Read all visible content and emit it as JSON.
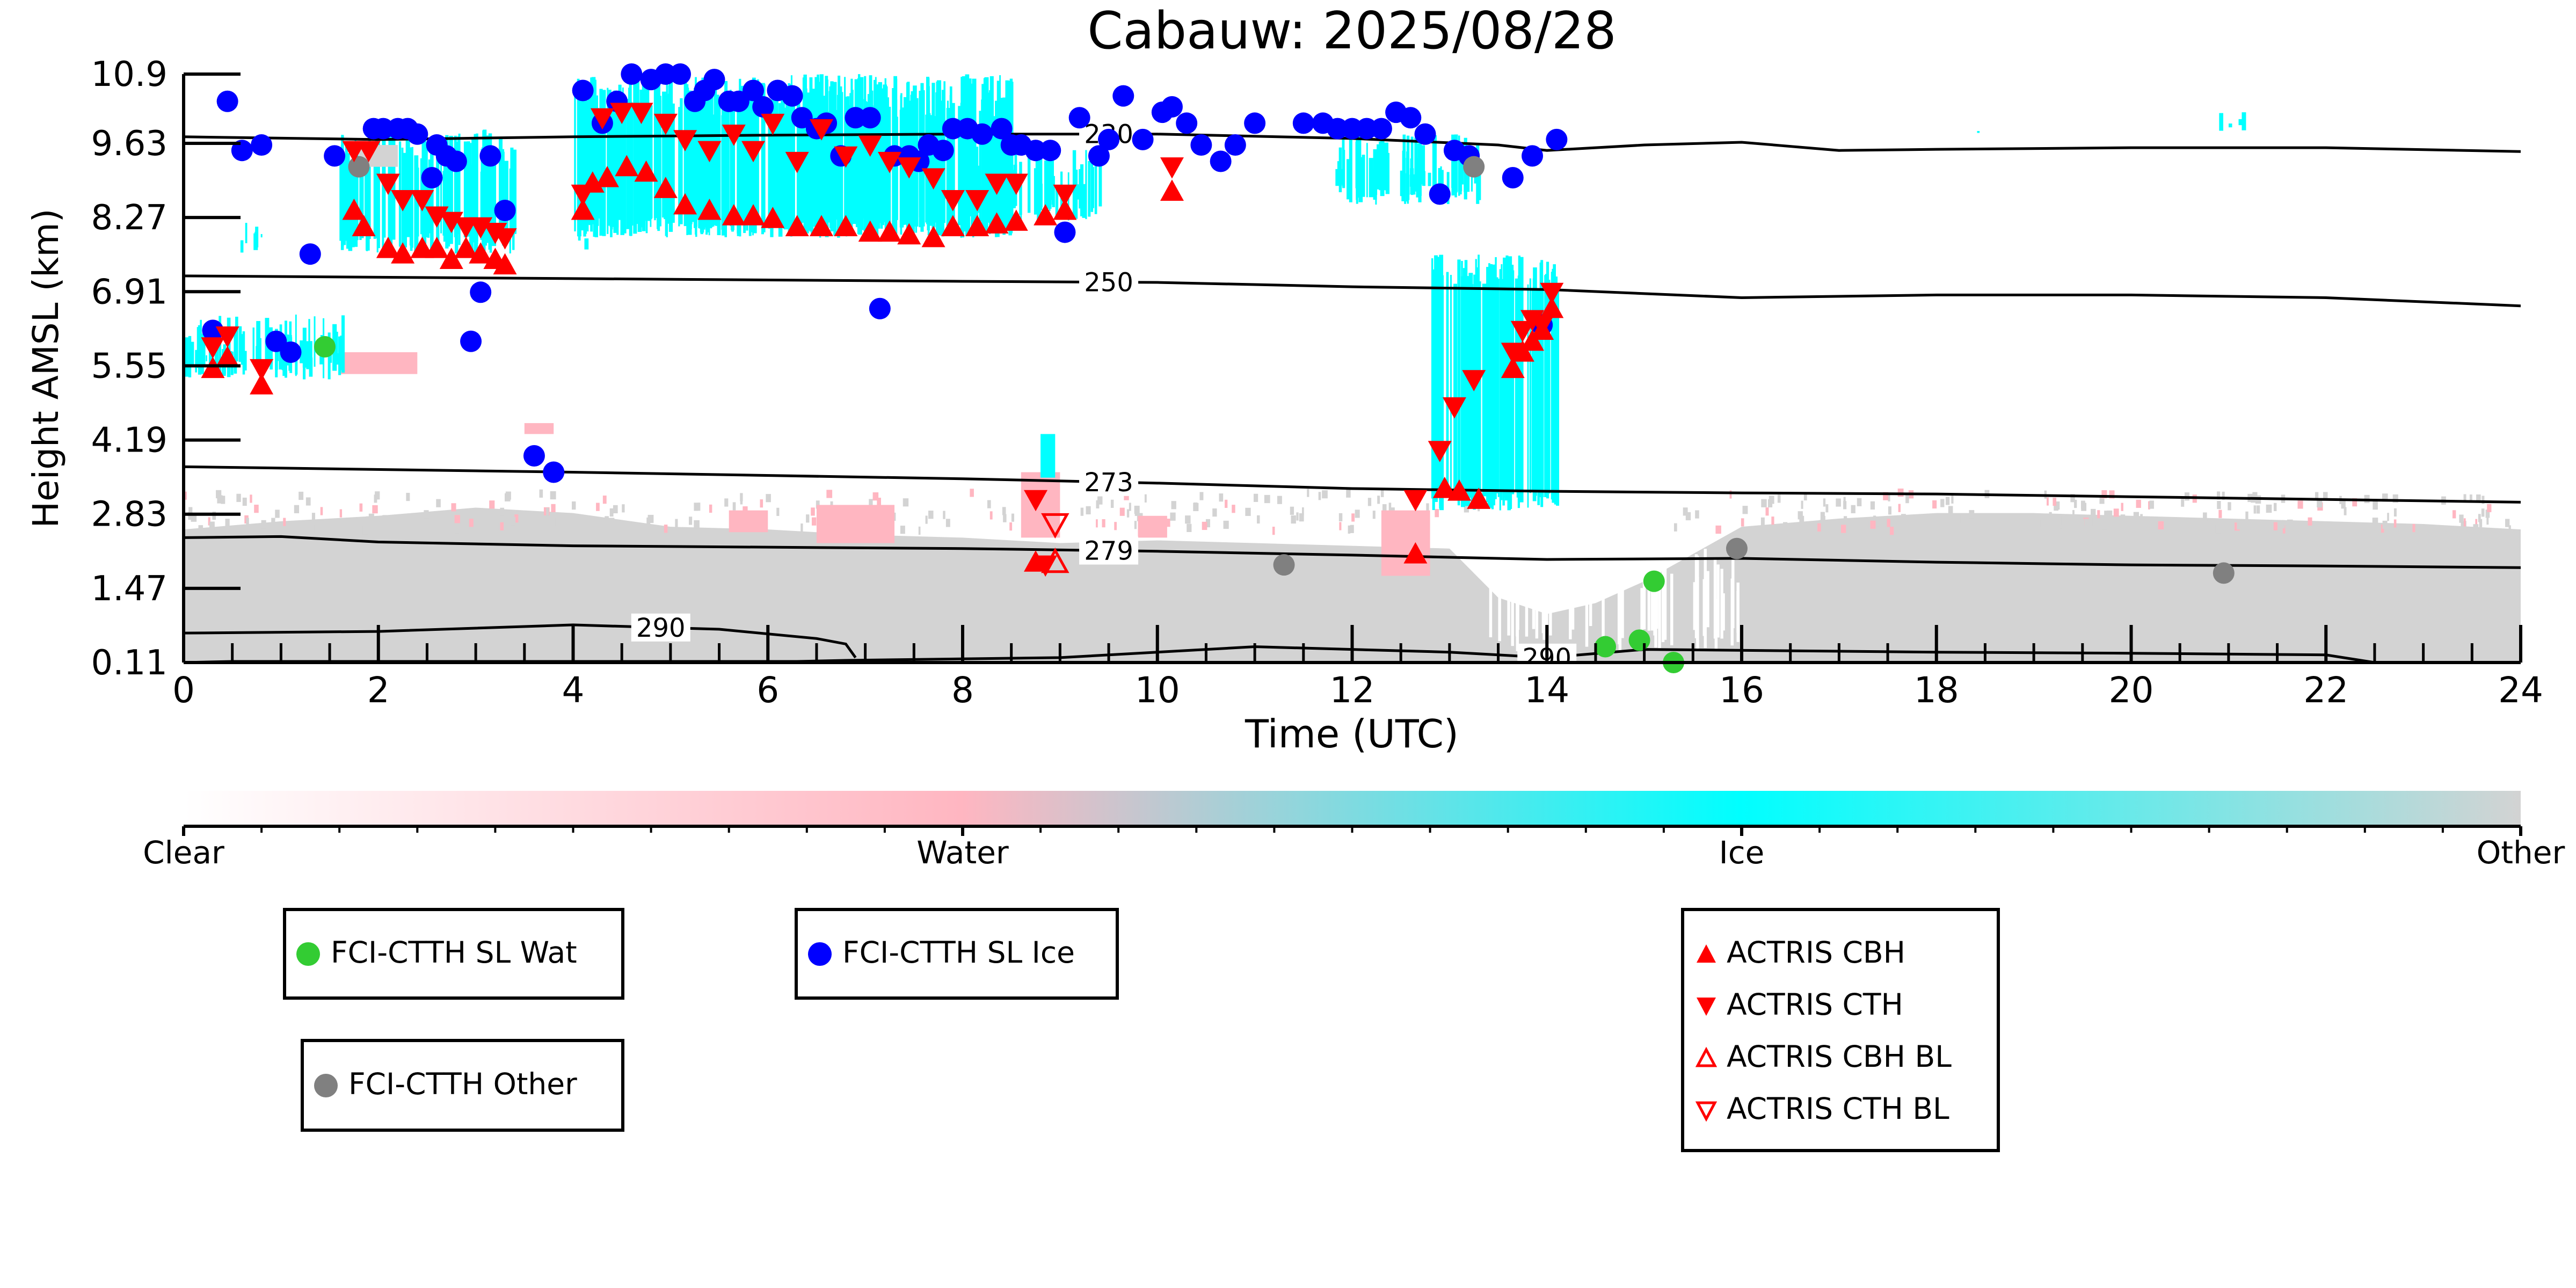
{
  "chart_data": {
    "type": "scatter",
    "title": "Cabauw: 2025/08/28",
    "xlabel": "Time (UTC)",
    "ylabel": "Height AMSL (km)",
    "xlim": [
      0,
      24
    ],
    "ylim": [
      0.11,
      10.9
    ],
    "xticks": [
      "0",
      "2",
      "4",
      "6",
      "8",
      "10",
      "12",
      "14",
      "16",
      "18",
      "20",
      "22",
      "24"
    ],
    "yticks": [
      "0.11",
      "1.47",
      "2.83",
      "4.19",
      "5.55",
      "6.91",
      "8.27",
      "9.63",
      "10.9"
    ],
    "colorbar": {
      "labels": [
        "Clear",
        "Water",
        "Ice",
        "Other"
      ],
      "colors": [
        "#ffffff",
        "#ffb6c1",
        "#00ffff",
        "#d3d3d3"
      ]
    },
    "background_field": "cloud phase classification (Clear / Water / Ice / Other)",
    "isotherms": [
      {
        "label": "230",
        "x": [
          0,
          2,
          4,
          6,
          8,
          10,
          12,
          13.5,
          14,
          15,
          16,
          17,
          18,
          20,
          22,
          24
        ],
        "y": [
          9.75,
          9.7,
          9.75,
          9.78,
          9.8,
          9.8,
          9.72,
          9.6,
          9.5,
          9.6,
          9.65,
          9.5,
          9.52,
          9.55,
          9.55,
          9.48
        ]
      },
      {
        "label": "250",
        "x": [
          0,
          4,
          8,
          10,
          12,
          14,
          16,
          18,
          20,
          22,
          24
        ],
        "y": [
          7.2,
          7.15,
          7.1,
          7.08,
          7.0,
          6.95,
          6.8,
          6.85,
          6.85,
          6.8,
          6.65
        ]
      },
      {
        "label": "273",
        "x": [
          0,
          4,
          8,
          10,
          12,
          14,
          16,
          18,
          20,
          22,
          24
        ],
        "y": [
          3.7,
          3.6,
          3.48,
          3.4,
          3.3,
          3.25,
          3.22,
          3.2,
          3.15,
          3.1,
          3.05
        ]
      },
      {
        "label": "279",
        "x": [
          0,
          1,
          2,
          4,
          8,
          10,
          12,
          14,
          16,
          18,
          20,
          22,
          24
        ],
        "y": [
          2.4,
          2.42,
          2.32,
          2.25,
          2.2,
          2.15,
          2.08,
          2.0,
          2.02,
          1.95,
          1.9,
          1.88,
          1.85
        ]
      },
      {
        "label": "290",
        "x": [
          0,
          2,
          4,
          5.5,
          6.5,
          6.8,
          6.9
        ],
        "y": [
          0.65,
          0.68,
          0.8,
          0.72,
          0.55,
          0.45,
          0.2
        ]
      },
      {
        "label": "290",
        "x": [
          0,
          0.5,
          6.3,
          6.8,
          9,
          11,
          13,
          14,
          15,
          18,
          20,
          22,
          22.5
        ],
        "y": [
          0.11,
          0.13,
          0.13,
          0.15,
          0.2,
          0.4,
          0.3,
          0.2,
          0.35,
          0.3,
          0.28,
          0.25,
          0.11
        ]
      }
    ],
    "series": [
      {
        "name": "FCI-CTTH SL Wat",
        "marker": "circle",
        "color": "#33cc33",
        "x": [
          1.45,
          14.6,
          14.95,
          15.1,
          15.3
        ],
        "y": [
          5.9,
          0.4,
          0.52,
          1.6,
          0.11
        ]
      },
      {
        "name": "FCI-CTTH SL Ice",
        "marker": "circle",
        "color": "#0000ff",
        "x": [
          0.3,
          0.45,
          0.6,
          0.8,
          0.95,
          1.1,
          1.3,
          1.55,
          1.95,
          2.05,
          2.2,
          2.3,
          2.4,
          2.55,
          2.6,
          2.7,
          2.8,
          2.95,
          3.05,
          3.15,
          3.3,
          3.6,
          3.8,
          4.1,
          4.3,
          4.45,
          4.6,
          4.8,
          4.95,
          5.1,
          5.25,
          5.35,
          5.45,
          5.6,
          5.7,
          5.85,
          5.95,
          6.1,
          6.25,
          6.35,
          6.5,
          6.6,
          6.75,
          6.9,
          7.05,
          7.15,
          7.3,
          7.45,
          7.55,
          7.65,
          7.8,
          7.9,
          8.05,
          8.2,
          8.4,
          8.5,
          8.6,
          8.75,
          8.9,
          9.05,
          9.2,
          9.4,
          9.5,
          9.65,
          9.85,
          10.05,
          10.15,
          10.3,
          10.45,
          10.65,
          10.8,
          11.0,
          11.5,
          11.7,
          11.85,
          12.0,
          12.15,
          12.3,
          12.45,
          12.6,
          12.75,
          12.9,
          13.05,
          13.2,
          13.65,
          13.85,
          13.95,
          14.1
        ],
        "y": [
          6.2,
          10.4,
          9.5,
          9.6,
          6.0,
          5.8,
          7.6,
          9.4,
          9.9,
          9.9,
          9.9,
          9.9,
          9.8,
          9.0,
          9.6,
          9.4,
          9.3,
          6.0,
          6.9,
          9.4,
          8.4,
          3.9,
          3.6,
          10.6,
          10.0,
          10.4,
          10.9,
          10.8,
          10.9,
          10.9,
          10.4,
          10.6,
          10.8,
          10.4,
          10.4,
          10.6,
          10.3,
          10.6,
          10.5,
          10.1,
          9.9,
          10.0,
          9.4,
          10.1,
          10.1,
          6.6,
          9.4,
          9.4,
          9.3,
          9.6,
          9.5,
          9.9,
          9.9,
          9.8,
          9.9,
          9.6,
          9.6,
          9.5,
          9.5,
          8.0,
          10.1,
          9.4,
          9.7,
          10.5,
          9.7,
          10.2,
          10.3,
          10.0,
          9.6,
          9.3,
          9.6,
          10.0,
          10.0,
          10.0,
          9.9,
          9.9,
          9.9,
          9.9,
          10.2,
          10.1,
          9.8,
          8.7,
          9.5,
          9.4,
          9.0,
          9.4,
          6.3,
          9.7
        ]
      },
      {
        "name": "FCI-CTTH Other",
        "marker": "circle",
        "color": "#808080",
        "x": [
          1.8,
          11.3,
          13.25,
          15.95,
          20.95
        ],
        "y": [
          9.2,
          1.9,
          9.2,
          2.2,
          1.75
        ]
      },
      {
        "name": "ACTRIS CBH",
        "marker": "triangle-up-filled",
        "color": "#ff0000",
        "x": [
          0.3,
          0.45,
          0.8,
          1.75,
          1.85,
          2.1,
          2.25,
          2.45,
          2.6,
          2.75,
          2.9,
          3.05,
          3.2,
          3.3,
          4.1,
          4.2,
          4.35,
          4.55,
          4.75,
          4.95,
          5.15,
          5.4,
          5.65,
          5.85,
          6.05,
          6.3,
          6.55,
          6.8,
          7.05,
          7.25,
          7.45,
          7.7,
          7.9,
          8.15,
          8.35,
          8.55,
          8.75,
          8.85,
          9.05,
          10.15,
          12.65,
          12.95,
          13.1,
          13.3,
          13.65,
          13.75,
          13.85,
          13.95,
          14.05
        ],
        "y": [
          5.5,
          5.7,
          5.2,
          8.4,
          8.1,
          7.7,
          7.6,
          7.7,
          7.7,
          7.5,
          7.7,
          7.6,
          7.5,
          7.4,
          8.4,
          8.9,
          9.0,
          9.2,
          9.1,
          8.8,
          8.5,
          8.4,
          8.3,
          8.3,
          8.25,
          8.1,
          8.1,
          8.1,
          8.0,
          8.0,
          7.95,
          7.9,
          8.1,
          8.1,
          8.15,
          8.2,
          1.95,
          8.3,
          8.4,
          8.75,
          2.1,
          3.3,
          3.25,
          3.1,
          5.5,
          5.8,
          6.0,
          6.2,
          6.6
        ]
      },
      {
        "name": "ACTRIS CTH",
        "marker": "triangle-down-filled",
        "color": "#ff0000",
        "x": [
          0.3,
          0.45,
          0.8,
          1.75,
          1.9,
          2.1,
          2.25,
          2.45,
          2.6,
          2.75,
          2.9,
          3.05,
          3.2,
          3.3,
          4.1,
          4.3,
          4.5,
          4.7,
          4.95,
          5.15,
          5.4,
          5.65,
          5.85,
          6.05,
          6.3,
          6.55,
          6.8,
          7.05,
          7.25,
          7.45,
          7.7,
          7.9,
          8.15,
          8.35,
          8.55,
          8.75,
          8.85,
          9.05,
          10.15,
          12.65,
          12.9,
          13.05,
          13.25,
          13.65,
          13.75,
          13.85,
          13.95,
          14.05
        ],
        "y": [
          5.9,
          6.1,
          5.5,
          9.5,
          9.5,
          8.9,
          8.6,
          8.6,
          8.3,
          8.2,
          8.1,
          8.1,
          8.0,
          7.9,
          8.7,
          10.1,
          10.2,
          10.2,
          10.0,
          9.7,
          9.5,
          9.8,
          9.5,
          10.0,
          9.3,
          9.9,
          9.4,
          9.6,
          9.3,
          9.2,
          9.0,
          8.6,
          8.6,
          8.9,
          8.9,
          3.1,
          1.9,
          8.7,
          9.2,
          3.1,
          4.0,
          4.8,
          5.3,
          5.8,
          6.2,
          6.4,
          6.3,
          6.9
        ]
      },
      {
        "name": "ACTRIS CBH BL",
        "marker": "triangle-up-open",
        "color": "#ff0000",
        "x": [
          8.95
        ],
        "y": [
          1.95
        ]
      },
      {
        "name": "ACTRIS CTH BL",
        "marker": "triangle-down-open",
        "color": "#ff0000",
        "x": [
          8.95
        ],
        "y": [
          2.65
        ]
      }
    ],
    "legend_placement": "below plot"
  },
  "legend": {
    "wat": "FCI-CTTH SL Wat",
    "ice": "FCI-CTTH SL Ice",
    "other": "FCI-CTTH Other",
    "cbh": "ACTRIS CBH",
    "cth": "ACTRIS CTH",
    "cbh_bl": "ACTRIS CBH BL",
    "cth_bl": "ACTRIS CTH BL"
  }
}
